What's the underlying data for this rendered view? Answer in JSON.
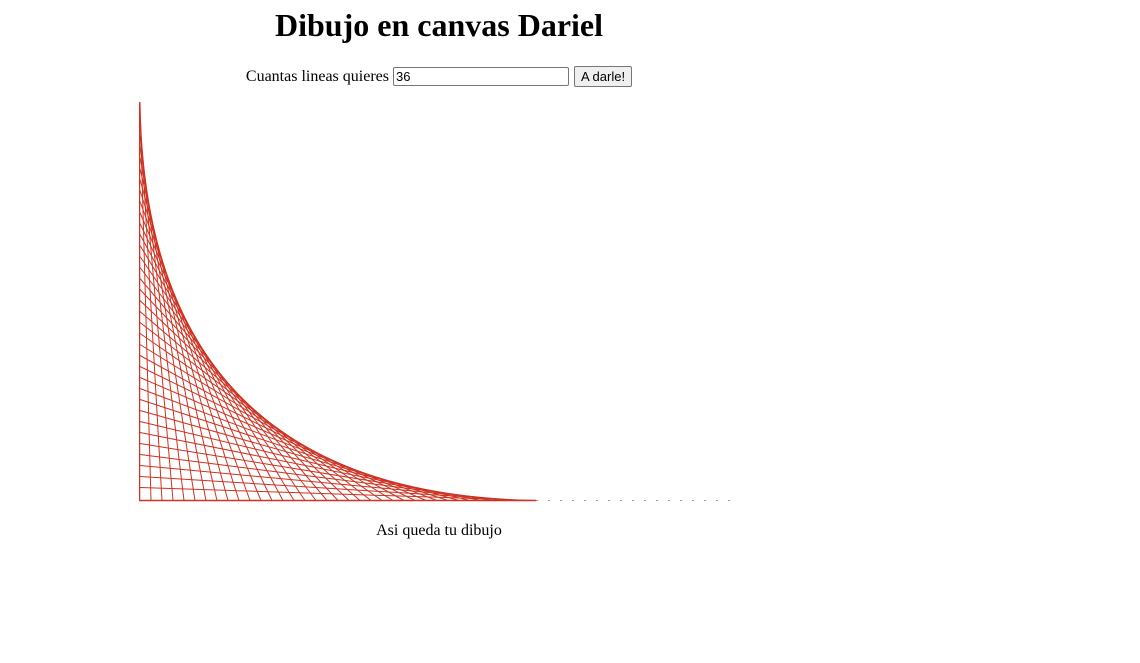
{
  "page": {
    "title": "Dibujo en canvas Dariel"
  },
  "form": {
    "label": "Cuantas lineas quieres",
    "lines_value": "36",
    "button_label": "A darle!"
  },
  "drawing": {
    "line_count": 36,
    "line_color": "#cc3322"
  },
  "caption": "Asi queda tu dibujo"
}
